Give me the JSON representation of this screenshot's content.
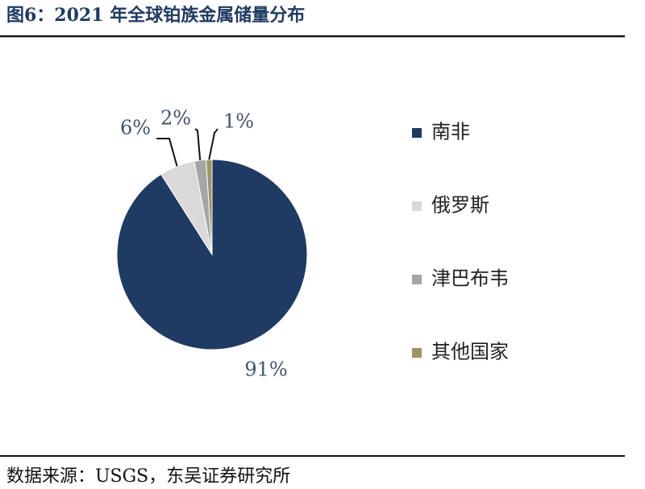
{
  "chart_data": {
    "type": "pie",
    "title": "图6：2021 年全球铂族金属储量分布",
    "source": "数据来源：USGS，东吴证券研究所",
    "categories": [
      "南非",
      "俄罗斯",
      "津巴布韦",
      "其他国家"
    ],
    "values": [
      91,
      6,
      2,
      1
    ],
    "value_labels": [
      "91%",
      "6%",
      "2%",
      "1%"
    ],
    "colors": [
      "#1f3a63",
      "#d9d9d9",
      "#a6a6a6",
      "#9e9468"
    ],
    "legend": "right"
  }
}
